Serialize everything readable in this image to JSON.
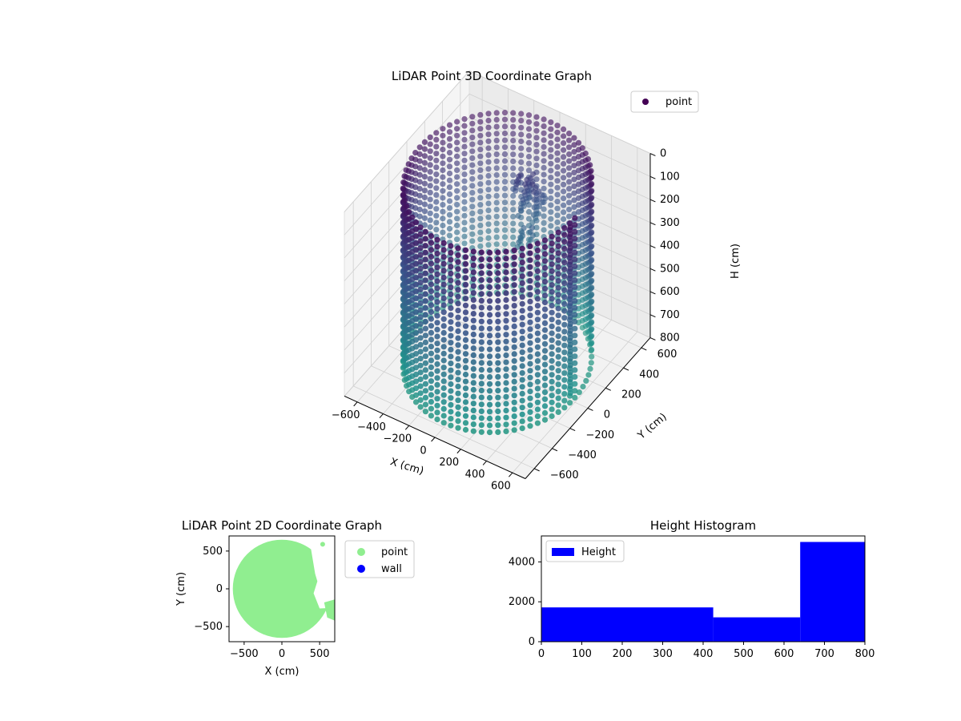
{
  "chart_data": [
    {
      "type": "scatter3d",
      "title": "LiDAR Point 3D Coordinate Graph",
      "xlabel": "X (cm)",
      "ylabel": "Y (cm)",
      "zlabel": "H (cm)",
      "xlim": [
        -700,
        700
      ],
      "ylim": [
        -700,
        700
      ],
      "zlim": [
        0,
        800
      ],
      "zinverted": true,
      "xticks": [
        "−600",
        "−400",
        "−200",
        "0",
        "200",
        "400",
        "600"
      ],
      "yticks": [
        "−600",
        "−400",
        "−200",
        "0",
        "200",
        "400",
        "600"
      ],
      "zticks": [
        "0",
        "100",
        "200",
        "300",
        "400",
        "500",
        "600",
        "700",
        "800"
      ],
      "legend": {
        "labels": [
          "point"
        ],
        "placement": "top-right",
        "color": "#440154"
      },
      "colormap": "viridis",
      "shape": {
        "kind": "cylinder-wall",
        "radius_cm": 600,
        "height_cm": 800
      },
      "grid": true
    },
    {
      "type": "scatter",
      "title": "LiDAR Point 2D Coordinate Graph",
      "xlabel": "X (cm)",
      "ylabel": "Y (cm)",
      "xlim": [
        -700,
        700
      ],
      "ylim": [
        -700,
        700
      ],
      "xticks": [
        "−500",
        "0",
        "500"
      ],
      "yticks": [
        "−500",
        "0",
        "500"
      ],
      "series": [
        {
          "name": "point",
          "color": "#90ee90",
          "shape": "disc",
          "radius_cm": 650
        },
        {
          "name": "wall",
          "color": "#0000ff"
        }
      ],
      "legend_placement": "outside-right"
    },
    {
      "type": "histogram",
      "title": "Height Histogram",
      "xlim": [
        0,
        800
      ],
      "ylim": [
        0,
        5300
      ],
      "xticks": [
        "0",
        "100",
        "200",
        "300",
        "400",
        "500",
        "600",
        "700",
        "800"
      ],
      "yticks": [
        "0",
        "2000",
        "4000"
      ],
      "series": [
        {
          "name": "Height",
          "color": "#0000ff",
          "bins": [
            {
              "from": 0,
              "to": 425,
              "count": 1720
            },
            {
              "from": 425,
              "to": 640,
              "count": 1220
            },
            {
              "from": 640,
              "to": 800,
              "count": 5000
            }
          ]
        }
      ],
      "legend_placement": "top-left"
    }
  ]
}
